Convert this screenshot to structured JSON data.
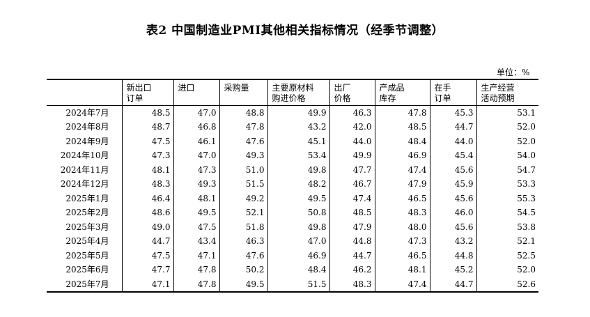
{
  "title": "表2 中国制造业PMI其他相关指标情况（经季节调整）",
  "unit": "单位：%",
  "columns": [
    {
      "line1": "新出口",
      "line2": "订单"
    },
    {
      "line1": "进口",
      "line2": ""
    },
    {
      "line1": "采购量",
      "line2": ""
    },
    {
      "line1": "主要原材料",
      "line2": "购进价格"
    },
    {
      "line1": "出厂",
      "line2": "价格"
    },
    {
      "line1": "产成品",
      "line2": "库存"
    },
    {
      "line1": "在手",
      "line2": "订单"
    },
    {
      "line1": "生产经营",
      "line2": "活动预期"
    }
  ],
  "rows": [
    {
      "label": "2024年7月",
      "values": [
        "48.5",
        "47.0",
        "48.8",
        "49.9",
        "46.3",
        "47.8",
        "45.3",
        "53.1"
      ]
    },
    {
      "label": "2024年8月",
      "values": [
        "48.7",
        "46.8",
        "47.8",
        "43.2",
        "42.0",
        "48.5",
        "44.7",
        "52.0"
      ]
    },
    {
      "label": "2024年9月",
      "values": [
        "47.5",
        "46.1",
        "47.6",
        "45.1",
        "44.0",
        "48.4",
        "44.0",
        "52.0"
      ]
    },
    {
      "label": "2024年10月",
      "values": [
        "47.3",
        "47.0",
        "49.3",
        "53.4",
        "49.9",
        "46.9",
        "45.4",
        "54.0"
      ]
    },
    {
      "label": "2024年11月",
      "values": [
        "48.1",
        "47.3",
        "51.0",
        "49.8",
        "47.7",
        "47.4",
        "45.6",
        "54.7"
      ]
    },
    {
      "label": "2024年12月",
      "values": [
        "48.3",
        "49.3",
        "51.5",
        "48.2",
        "46.7",
        "47.9",
        "45.9",
        "53.3"
      ]
    },
    {
      "label": "2025年1月",
      "values": [
        "46.4",
        "48.1",
        "49.2",
        "49.5",
        "47.4",
        "46.5",
        "45.6",
        "55.3"
      ]
    },
    {
      "label": "2025年2月",
      "values": [
        "48.6",
        "49.5",
        "52.1",
        "50.8",
        "48.5",
        "48.3",
        "46.0",
        "54.5"
      ]
    },
    {
      "label": "2025年3月",
      "values": [
        "49.0",
        "47.5",
        "51.8",
        "49.8",
        "47.9",
        "48.0",
        "45.6",
        "53.8"
      ]
    },
    {
      "label": "2025年4月",
      "values": [
        "44.7",
        "43.4",
        "46.3",
        "47.0",
        "44.8",
        "47.3",
        "43.2",
        "52.1"
      ]
    },
    {
      "label": "2025年5月",
      "values": [
        "47.5",
        "47.1",
        "47.6",
        "46.9",
        "44.7",
        "46.5",
        "44.8",
        "52.5"
      ]
    },
    {
      "label": "2025年6月",
      "values": [
        "47.7",
        "47.8",
        "50.2",
        "48.4",
        "46.2",
        "48.1",
        "45.2",
        "52.0"
      ]
    },
    {
      "label": "2025年7月",
      "values": [
        "47.1",
        "47.8",
        "49.5",
        "51.5",
        "48.3",
        "47.4",
        "44.7",
        "52.6"
      ]
    }
  ]
}
